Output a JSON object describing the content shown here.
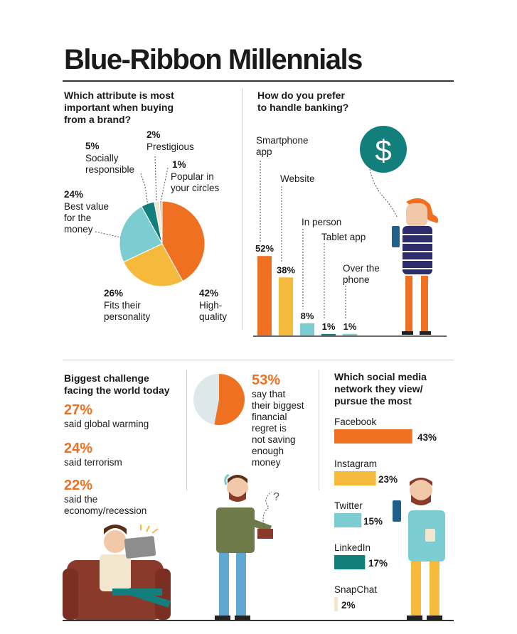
{
  "title": "Blue-Ribbon Millennials",
  "colors": {
    "orange": "#f07022",
    "yellow": "#f5b93c",
    "light_teal": "#7ccdd2",
    "dark_teal": "#127f7c",
    "beige": "#f2e6cf",
    "tiny_slice": "#c9c9c9"
  },
  "icons": {
    "dollar_badge": "$",
    "smoke_question": "?"
  },
  "attribute": {
    "question": "Which attribute is most\nimportant when buying\nfrom a  brand?",
    "chart_data": {
      "type": "pie",
      "categories": [
        "High-quality",
        "Fits their personality",
        "Best value for the money",
        "Socially responsible",
        "Prestigious",
        "Popular in your circles"
      ],
      "values": [
        42,
        26,
        24,
        5,
        2,
        1
      ],
      "pct_labels": [
        "42%",
        "26%",
        "24%",
        "5%",
        "2%",
        "1%"
      ],
      "label_texts": [
        "High-\nquality",
        "Fits their\npersonality",
        "Best value\nfor the\nmoney",
        "Socially\nresponsible",
        "Prestigious",
        "Popular in\nyour circles"
      ]
    }
  },
  "banking": {
    "question": "How do you prefer\nto handle banking?",
    "chart_data": {
      "type": "bar",
      "categories": [
        "Smartphone app",
        "Website",
        "In person",
        "Tablet app",
        "Over the phone"
      ],
      "label_texts": [
        "Smartphone\napp",
        "Website",
        "In person",
        "Tablet app",
        "Over the\nphone"
      ],
      "values": [
        52,
        38,
        8,
        1,
        1
      ],
      "pct_labels": [
        "52%",
        "38%",
        "8%",
        "1%",
        "1%"
      ]
    }
  },
  "challenge": {
    "question": "Biggest challenge\nfacing the world today",
    "items": [
      {
        "pct": "27%",
        "text": "said global warming"
      },
      {
        "pct": "24%",
        "text": "said terrorism"
      },
      {
        "pct": "22%",
        "text": "said the\neconomy/recession"
      }
    ]
  },
  "regret": {
    "pct": "53%",
    "text": "say that\ntheir biggest\nfinancial\nregret is\nnot saving\nenough\nmoney",
    "chart_data": {
      "type": "pie",
      "values": [
        53,
        47
      ]
    }
  },
  "social": {
    "question": "Which social media\nnetwork they view/\npursue the most",
    "chart_data": {
      "type": "bar",
      "orientation": "horizontal",
      "categories": [
        "Facebook",
        "Instagram",
        "Twitter",
        "LinkedIn",
        "SnapChat"
      ],
      "values": [
        43,
        23,
        15,
        17,
        2
      ],
      "pct_labels": [
        "43%",
        "23%",
        "15%",
        "17%",
        "2%"
      ]
    }
  }
}
